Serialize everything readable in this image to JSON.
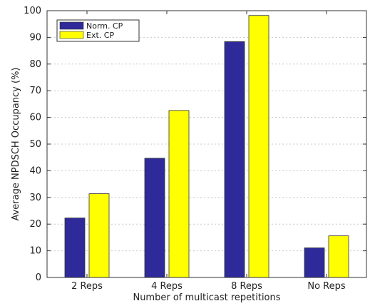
{
  "chart_data": {
    "type": "bar",
    "title": "",
    "xlabel": "Number of multicast repetitions",
    "ylabel": "Average NPDSCH Occupancy (%)",
    "categories": [
      "2 Reps",
      "4 Reps",
      "8 Reps",
      "No Reps"
    ],
    "series": [
      {
        "name": "Norm. CP",
        "values": [
          22.3,
          44.7,
          88.4,
          11.1
        ],
        "color": "#2e2a9a"
      },
      {
        "name": "Ext. CP",
        "values": [
          31.4,
          62.6,
          98.2,
          15.6
        ],
        "color": "#ffff00"
      }
    ],
    "ylim": [
      0,
      100
    ],
    "yticks": [
      0,
      10,
      20,
      30,
      40,
      50,
      60,
      70,
      80,
      90,
      100
    ],
    "grid": "dashed horizontal",
    "legend_position": "top-left"
  }
}
